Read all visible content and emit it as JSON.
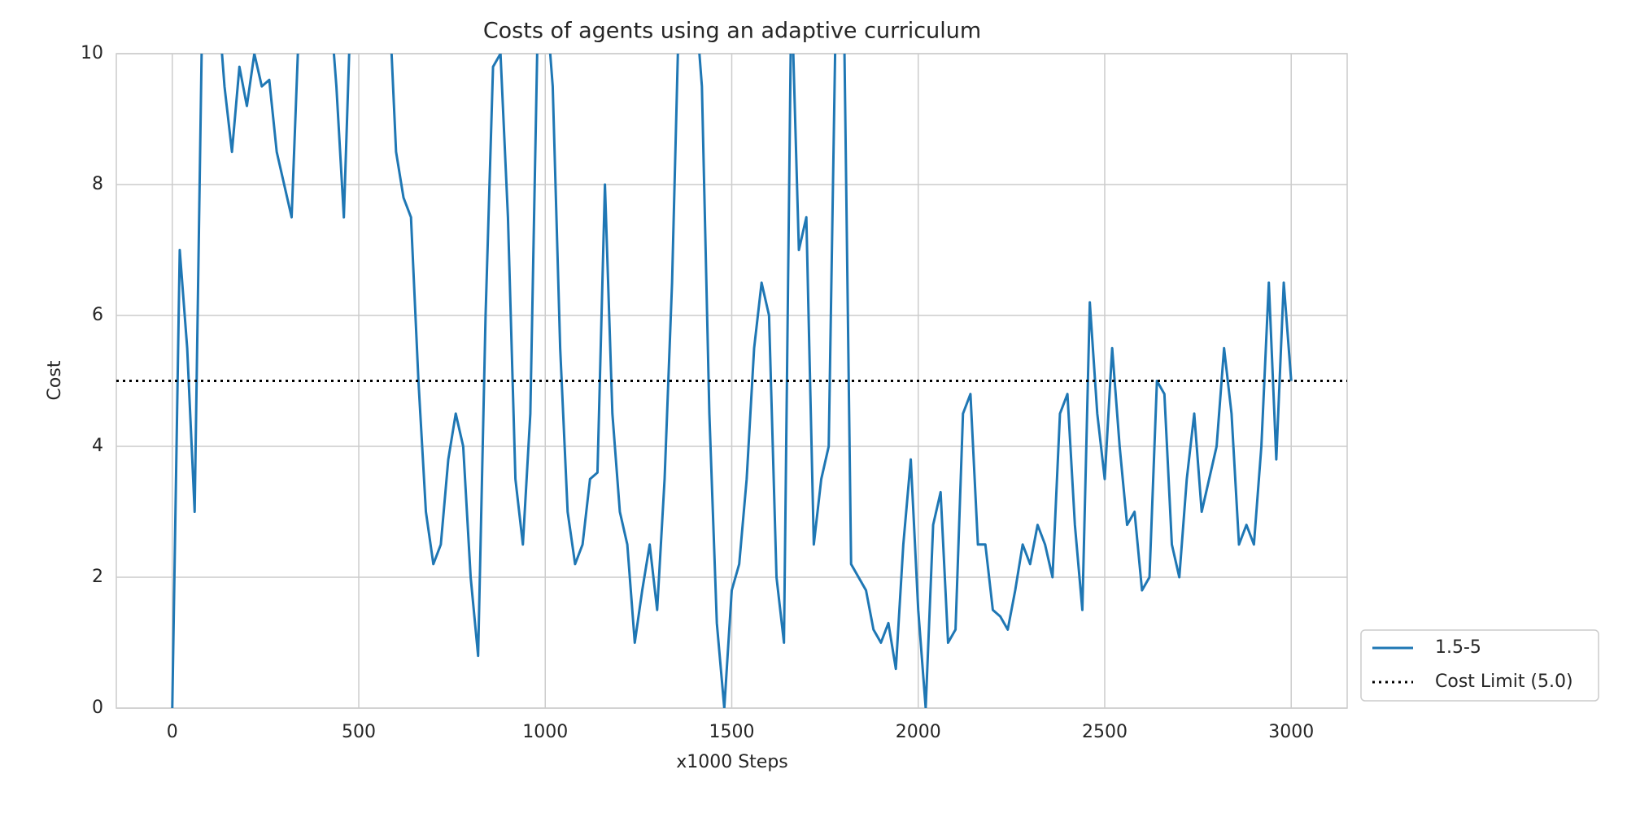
{
  "chart_data": {
    "type": "line",
    "title": "Costs of agents using an adaptive curriculum",
    "x_label": "x1000 Steps",
    "y_label": "Cost",
    "x": [
      0,
      20,
      40,
      60,
      80,
      100,
      120,
      140,
      160,
      180,
      200,
      220,
      240,
      260,
      280,
      300,
      320,
      340,
      360,
      380,
      400,
      420,
      440,
      460,
      480,
      500,
      520,
      540,
      560,
      580,
      600,
      620,
      640,
      660,
      680,
      700,
      720,
      740,
      760,
      780,
      800,
      820,
      840,
      860,
      880,
      900,
      920,
      940,
      960,
      980,
      1000,
      1020,
      1040,
      1060,
      1080,
      1100,
      1120,
      1140,
      1160,
      1180,
      1200,
      1220,
      1240,
      1260,
      1280,
      1300,
      1320,
      1340,
      1360,
      1380,
      1400,
      1420,
      1440,
      1460,
      1480,
      1500,
      1520,
      1540,
      1560,
      1580,
      1600,
      1620,
      1640,
      1660,
      1680,
      1700,
      1720,
      1740,
      1760,
      1780,
      1800,
      1820,
      1840,
      1860,
      1880,
      1900,
      1920,
      1940,
      1960,
      1980,
      2000,
      2020,
      2040,
      2060,
      2080,
      2100,
      2120,
      2140,
      2160,
      2180,
      2200,
      2220,
      2240,
      2260,
      2280,
      2300,
      2320,
      2340,
      2360,
      2380,
      2400,
      2420,
      2440,
      2460,
      2480,
      2500,
      2520,
      2540,
      2560,
      2580,
      2600,
      2620,
      2640,
      2660,
      2680,
      2700,
      2720,
      2740,
      2760,
      2780,
      2800,
      2820,
      2840,
      2860,
      2880,
      2900,
      2920,
      2940,
      2960,
      2980,
      3000
    ],
    "series": [
      {
        "name": "1.5-5",
        "color": "#1f77b4",
        "values": [
          0,
          7.0,
          5.5,
          3.0,
          10.5,
          11,
          11,
          9.5,
          8.5,
          9.8,
          9.2,
          10,
          9.5,
          9.6,
          8.5,
          8.0,
          7.5,
          10.5,
          11,
          11,
          11,
          11,
          9.5,
          7.5,
          11,
          11,
          11,
          11,
          11,
          11,
          8.5,
          7.8,
          7.5,
          5.0,
          3.0,
          2.2,
          2.5,
          3.8,
          4.5,
          4.0,
          2.0,
          0.8,
          6.0,
          9.8,
          10,
          7.5,
          3.5,
          2.5,
          4.5,
          10.5,
          11,
          9.5,
          5.5,
          3.0,
          2.2,
          2.5,
          3.5,
          3.6,
          8.0,
          4.5,
          3.0,
          2.5,
          1.0,
          1.8,
          2.5,
          1.5,
          3.5,
          6.5,
          11,
          11,
          11,
          9.5,
          4.5,
          1.3,
          0,
          1.8,
          2.2,
          3.5,
          5.5,
          6.5,
          6.0,
          2.0,
          1.0,
          11,
          7.0,
          7.5,
          2.5,
          3.5,
          4.0,
          11,
          11,
          2.2,
          2.0,
          1.8,
          1.2,
          1.0,
          1.3,
          0.6,
          2.5,
          3.8,
          1.5,
          0,
          2.8,
          3.3,
          1.0,
          1.2,
          4.5,
          4.8,
          2.5,
          2.5,
          1.5,
          1.4,
          1.2,
          1.8,
          2.5,
          2.2,
          2.8,
          2.5,
          2.0,
          4.5,
          4.8,
          2.8,
          1.5,
          6.2,
          4.5,
          3.5,
          5.5,
          4.0,
          2.8,
          3.0,
          1.8,
          2.0,
          5.0,
          4.8,
          2.5,
          2.0,
          3.5,
          4.5,
          3.0,
          3.5,
          4.0,
          5.5,
          4.5,
          2.5,
          2.8,
          2.5,
          4.0,
          6.5,
          3.8,
          6.5,
          5.0
        ]
      }
    ],
    "hline": {
      "name": "Cost Limit (5.0)",
      "value": 5,
      "color": "#000000"
    },
    "xlim": [
      -150,
      3150
    ],
    "ylim": [
      0,
      10
    ],
    "xticks": [
      0,
      500,
      1000,
      1500,
      2000,
      2500,
      3000
    ],
    "yticks": [
      0,
      2,
      4,
      6,
      8,
      10
    ],
    "grid": true,
    "legend": "outside lower right"
  }
}
